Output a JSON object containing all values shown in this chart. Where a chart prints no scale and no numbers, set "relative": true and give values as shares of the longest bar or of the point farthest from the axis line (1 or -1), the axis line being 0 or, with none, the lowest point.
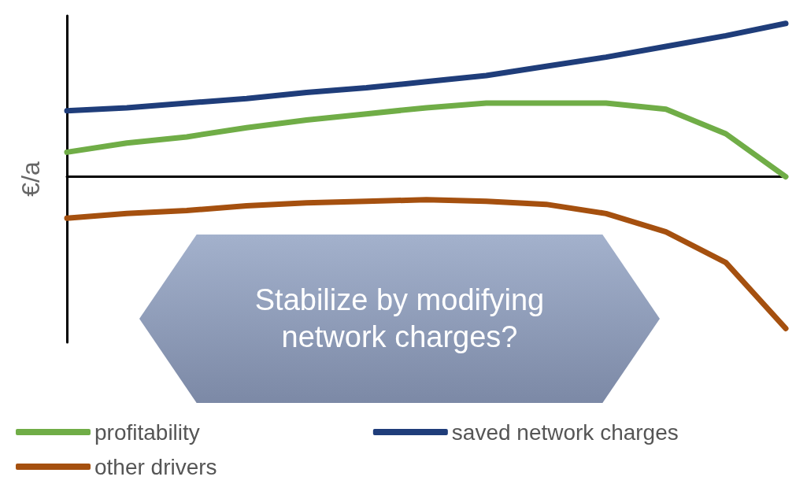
{
  "chart_data": {
    "type": "line",
    "relative": true,
    "ylabel": "€/a",
    "categories": [
      null,
      null,
      null,
      null,
      null,
      null,
      null,
      null,
      null,
      null,
      null,
      null,
      null
    ],
    "series": [
      {
        "name": "profitability",
        "color": "#70ad47",
        "values": [
          0.16,
          0.22,
          0.26,
          0.32,
          0.37,
          0.41,
          0.45,
          0.48,
          0.48,
          0.48,
          0.44,
          0.28,
          0.0
        ]
      },
      {
        "name": "saved network charges",
        "color": "#1f3d7a",
        "values": [
          0.43,
          0.45,
          0.48,
          0.51,
          0.55,
          0.58,
          0.62,
          0.66,
          0.72,
          0.78,
          0.85,
          0.92,
          1.0
        ]
      },
      {
        "name": "other drivers",
        "color": "#a5500f",
        "values": [
          -0.27,
          -0.24,
          -0.22,
          -0.19,
          -0.17,
          -0.16,
          -0.15,
          -0.16,
          -0.18,
          -0.24,
          -0.36,
          -0.56,
          -0.99
        ]
      }
    ],
    "annotations": [
      "Stabilize by modifying network charges?"
    ],
    "legend": "bottom",
    "grid": false,
    "marker": "none",
    "line_style": "solid"
  }
}
